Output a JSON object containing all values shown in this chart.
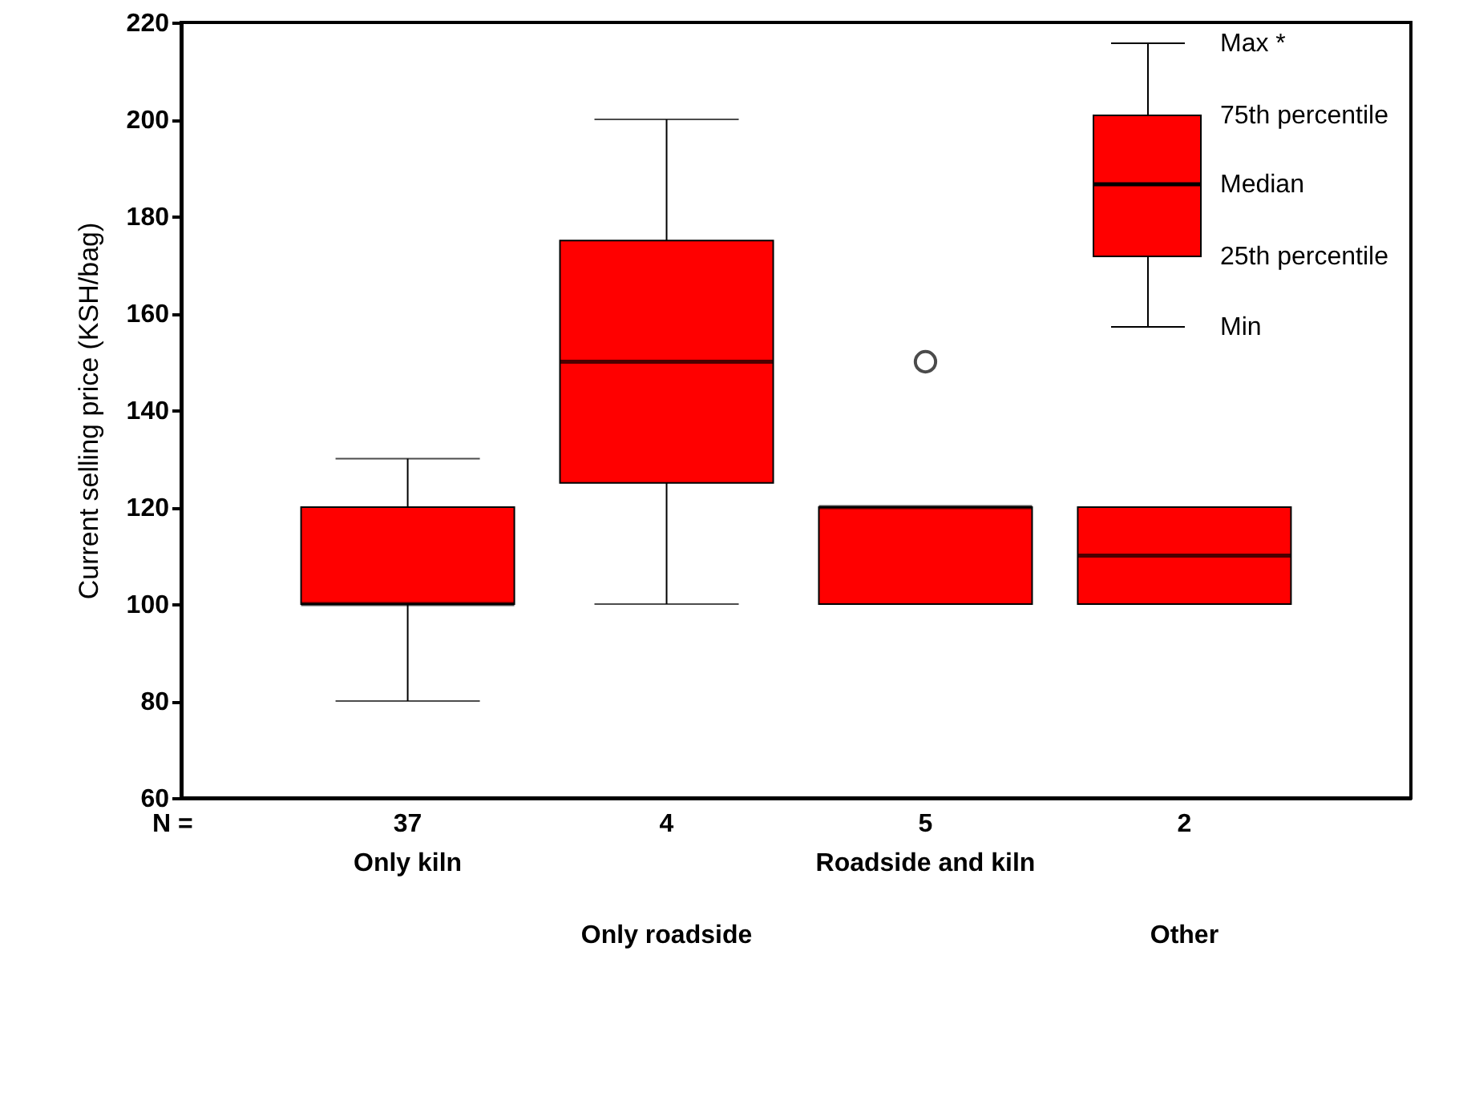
{
  "chart_data": {
    "type": "box",
    "ylabel": "Current selling price (KSH/bag)",
    "categories": [
      "Only kiln",
      "Only roadside",
      "Roadside and kiln",
      "Other"
    ],
    "series": [
      {
        "color": "#ff0000",
        "boxes": [
          {
            "low": 80,
            "q1": 100,
            "median": 100,
            "q3": 120,
            "high": 130
          },
          {
            "low": 100,
            "q1": 125,
            "median": 150,
            "q3": 175,
            "high": 200
          },
          {
            "low": 100,
            "q1": 100,
            "median": 120,
            "q3": 120,
            "high": 120,
            "outliers": [
              150
            ]
          },
          {
            "low": 100,
            "q1": 100,
            "median": 110,
            "q3": 120,
            "high": 120
          }
        ]
      }
    ],
    "ylim": [
      60,
      220
    ],
    "yticks": [
      60,
      80,
      100,
      120,
      140,
      160,
      180,
      200,
      220
    ],
    "grid": false,
    "annotations": [
      "N =",
      "Max *",
      "75th percentile",
      "Median",
      "25th percentile",
      "Min",
      "37",
      "4",
      "5",
      "2"
    ]
  }
}
